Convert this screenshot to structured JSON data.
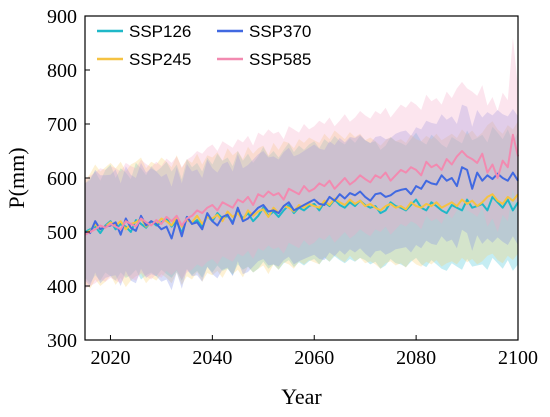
{
  "chart_data": {
    "type": "line",
    "title": "",
    "xlabel": "Year",
    "ylabel": "P(mm)",
    "xlim": [
      2015,
      2100
    ],
    "ylim": [
      300,
      900
    ],
    "xticks": [
      2020,
      2040,
      2060,
      2080,
      2100
    ],
    "yticks": [
      300,
      400,
      500,
      600,
      700,
      800,
      900
    ],
    "grid": false,
    "legend_position": "top-left",
    "x": [
      2015,
      2016,
      2017,
      2018,
      2019,
      2020,
      2021,
      2022,
      2023,
      2024,
      2025,
      2026,
      2027,
      2028,
      2029,
      2030,
      2031,
      2032,
      2033,
      2034,
      2035,
      2036,
      2037,
      2038,
      2039,
      2040,
      2041,
      2042,
      2043,
      2044,
      2045,
      2046,
      2047,
      2048,
      2049,
      2050,
      2051,
      2052,
      2053,
      2054,
      2055,
      2056,
      2057,
      2058,
      2059,
      2060,
      2061,
      2062,
      2063,
      2064,
      2065,
      2066,
      2067,
      2068,
      2069,
      2070,
      2071,
      2072,
      2073,
      2074,
      2075,
      2076,
      2077,
      2078,
      2079,
      2080,
      2081,
      2082,
      2083,
      2084,
      2085,
      2086,
      2087,
      2088,
      2089,
      2090,
      2091,
      2092,
      2093,
      2094,
      2095,
      2096,
      2097,
      2098,
      2099,
      2100
    ],
    "series": [
      {
        "name": "SSP126",
        "color": "#1FB8C8",
        "band_color": "#40C4D8",
        "values": [
          500,
          505,
          510,
          498,
          512,
          520,
          505,
          515,
          510,
          500,
          522,
          515,
          508,
          520,
          512,
          518,
          525,
          510,
          520,
          498,
          528,
          515,
          522,
          510,
          530,
          520,
          535,
          525,
          530,
          518,
          540,
          525,
          535,
          520,
          530,
          545,
          530,
          538,
          528,
          540,
          550,
          535,
          545,
          540,
          548,
          552,
          540,
          555,
          548,
          560,
          550,
          545,
          555,
          548,
          558,
          550,
          545,
          548,
          535,
          540,
          555,
          548,
          545,
          540,
          550,
          560,
          545,
          540,
          555,
          548,
          540,
          535,
          550,
          545,
          540,
          560,
          545,
          548,
          552,
          540,
          565,
          555,
          545,
          560,
          540,
          555
        ],
        "lower": [
          415,
          405,
          420,
          410,
          425,
          418,
          410,
          425,
          415,
          420,
          430,
          412,
          420,
          425,
          418,
          430,
          422,
          415,
          428,
          410,
          432,
          420,
          428,
          415,
          435,
          425,
          438,
          428,
          432,
          420,
          440,
          430,
          436,
          425,
          432,
          445,
          432,
          440,
          430,
          442,
          448,
          435,
          444,
          438,
          446,
          450,
          440,
          452,
          445,
          455,
          448,
          442,
          450,
          445,
          452,
          448,
          440,
          445,
          432,
          438,
          450,
          442,
          440,
          435,
          445,
          452,
          440,
          435,
          448,
          440,
          432,
          428,
          442,
          436,
          430,
          450,
          436,
          438,
          440,
          430,
          452,
          442,
          432,
          448,
          428,
          440
        ],
        "upper": [
          590,
          600,
          612,
          595,
          615,
          625,
          600,
          618,
          610,
          598,
          628,
          618,
          605,
          622,
          612,
          620,
          630,
          612,
          625,
          598,
          635,
          620,
          628,
          612,
          638,
          625,
          645,
          632,
          638,
          622,
          650,
          632,
          645,
          628,
          640,
          658,
          640,
          650,
          638,
          652,
          665,
          648,
          660,
          652,
          662,
          668,
          655,
          672,
          664,
          678,
          668,
          662,
          674,
          665,
          678,
          670,
          665,
          668,
          652,
          660,
          676,
          668,
          665,
          660,
          672,
          684,
          668,
          662,
          680,
          672,
          662,
          656,
          676,
          670,
          664,
          688,
          670,
          674,
          680,
          666,
          695,
          684,
          672,
          690,
          666,
          685
        ]
      },
      {
        "name": "SSP245",
        "color": "#F5C242",
        "band_color": "#F7D070",
        "values": [
          498,
          502,
          515,
          505,
          510,
          518,
          512,
          520,
          505,
          515,
          518,
          525,
          510,
          520,
          515,
          525,
          520,
          512,
          528,
          510,
          522,
          518,
          530,
          515,
          528,
          525,
          532,
          520,
          538,
          528,
          535,
          522,
          540,
          530,
          538,
          542,
          528,
          545,
          535,
          548,
          545,
          538,
          550,
          545,
          552,
          548,
          545,
          558,
          550,
          562,
          555,
          550,
          560,
          552,
          558,
          548,
          552,
          545,
          540,
          548,
          552,
          545,
          548,
          542,
          555,
          548,
          545,
          552,
          548,
          555,
          545,
          550,
          555,
          548,
          560,
          552,
          558,
          548,
          555,
          565,
          570,
          558,
          552,
          565,
          558,
          570
        ],
        "lower": [
          405,
          395,
          412,
          400,
          408,
          420,
          402,
          415,
          398,
          410,
          418,
          422,
          405,
          416,
          410,
          422,
          415,
          405,
          425,
          402,
          418,
          412,
          426,
          408,
          424,
          420,
          428,
          415,
          432,
          422,
          430,
          416,
          436,
          425,
          432,
          438,
          422,
          440,
          430,
          444,
          440,
          432,
          446,
          440,
          448,
          444,
          440,
          454,
          445,
          458,
          450,
          444,
          456,
          446,
          452,
          442,
          446,
          440,
          432,
          442,
          446,
          438,
          442,
          434,
          448,
          440,
          436,
          445,
          440,
          448,
          436,
          442,
          446,
          440,
          452,
          444,
          450,
          440,
          446,
          456,
          460,
          448,
          442,
          456,
          448,
          460
        ],
        "upper": [
          595,
          608,
          625,
          612,
          620,
          628,
          618,
          630,
          612,
          625,
          630,
          638,
          618,
          630,
          625,
          638,
          630,
          620,
          642,
          618,
          635,
          628,
          645,
          625,
          642,
          638,
          648,
          632,
          655,
          642,
          650,
          635,
          658,
          645,
          655,
          660,
          642,
          665,
          652,
          668,
          665,
          655,
          672,
          665,
          675,
          670,
          665,
          682,
          672,
          688,
          680,
          672,
          685,
          676,
          682,
          670,
          675,
          668,
          660,
          670,
          676,
          668,
          672,
          665,
          680,
          672,
          668,
          678,
          672,
          682,
          670,
          676,
          682,
          674,
          690,
          680,
          688,
          676,
          684,
          698,
          705,
          690,
          682,
          698,
          690,
          705
        ]
      },
      {
        "name": "SSP370",
        "color": "#4169E1",
        "band_color": "#7E8FE8",
        "values": [
          500,
          498,
          520,
          505,
          510,
          512,
          518,
          495,
          525,
          508,
          502,
          530,
          512,
          520,
          515,
          505,
          510,
          488,
          522,
          492,
          528,
          515,
          518,
          505,
          535,
          520,
          512,
          528,
          532,
          515,
          545,
          520,
          525,
          535,
          545,
          550,
          538,
          540,
          535,
          548,
          555,
          540,
          545,
          550,
          555,
          560,
          552,
          550,
          565,
          558,
          570,
          562,
          572,
          568,
          575,
          565,
          558,
          570,
          572,
          565,
          568,
          575,
          578,
          580,
          570,
          585,
          580,
          595,
          590,
          588,
          605,
          595,
          600,
          585,
          620,
          615,
          580,
          610,
          595,
          605,
          598,
          608,
          600,
          595,
          610,
          595
        ],
        "lower": [
          410,
          400,
          425,
          405,
          415,
          418,
          420,
          400,
          428,
          410,
          405,
          432,
          415,
          422,
          418,
          408,
          412,
          392,
          425,
          395,
          430,
          418,
          420,
          408,
          436,
          422,
          414,
          430,
          434,
          418,
          446,
          422,
          426,
          436,
          446,
          450,
          438,
          440,
          436,
          448,
          454,
          440,
          446,
          450,
          454,
          458,
          450,
          448,
          462,
          455,
          466,
          458,
          468,
          462,
          470,
          460,
          452,
          464,
          466,
          458,
          462,
          468,
          470,
          472,
          462,
          476,
          470,
          484,
          478,
          476,
          492,
          482,
          486,
          470,
          504,
          498,
          465,
          494,
          478,
          488,
          480,
          490,
          482,
          476,
          492,
          476
        ],
        "upper": [
          590,
          596,
          615,
          605,
          605,
          606,
          616,
          590,
          622,
          606,
          600,
          628,
          610,
          618,
          612,
          602,
          608,
          584,
          620,
          590,
          626,
          612,
          616,
          600,
          634,
          618,
          610,
          626,
          630,
          612,
          644,
          618,
          624,
          634,
          644,
          650,
          638,
          640,
          634,
          648,
          656,
          640,
          644,
          650,
          656,
          662,
          654,
          652,
          668,
          661,
          674,
          666,
          676,
          674,
          680,
          670,
          664,
          676,
          678,
          672,
          674,
          682,
          686,
          688,
          678,
          694,
          690,
          706,
          702,
          700,
          718,
          708,
          714,
          700,
          736,
          732,
          695,
          726,
          712,
          722,
          716,
          726,
          718,
          714,
          728,
          714
        ]
      },
      {
        "name": "SSP585",
        "color": "#F28AB0",
        "band_color": "#F6A8C8",
        "values": [
          495,
          500,
          505,
          512,
          508,
          515,
          510,
          505,
          520,
          515,
          510,
          525,
          518,
          512,
          522,
          515,
          528,
          520,
          530,
          512,
          525,
          530,
          540,
          535,
          545,
          550,
          540,
          555,
          550,
          545,
          560,
          555,
          565,
          550,
          570,
          565,
          575,
          568,
          572,
          560,
          580,
          575,
          570,
          585,
          575,
          580,
          590,
          585,
          595,
          580,
          590,
          600,
          588,
          595,
          605,
          598,
          592,
          605,
          600,
          610,
          595,
          605,
          615,
          610,
          620,
          615,
          605,
          630,
          620,
          625,
          615,
          635,
          625,
          640,
          650,
          640,
          635,
          628,
          645,
          610,
          625,
          600,
          632,
          620,
          680,
          640
        ],
        "lower": [
          395,
          400,
          405,
          412,
          408,
          415,
          410,
          405,
          420,
          415,
          410,
          425,
          418,
          412,
          422,
          415,
          428,
          420,
          430,
          412,
          425,
          430,
          440,
          435,
          445,
          450,
          440,
          455,
          450,
          445,
          460,
          455,
          465,
          450,
          470,
          465,
          475,
          468,
          472,
          460,
          480,
          475,
          470,
          485,
          475,
          480,
          490,
          485,
          495,
          480,
          490,
          500,
          488,
          495,
          505,
          498,
          492,
          505,
          500,
          510,
          495,
          505,
          515,
          510,
          520,
          515,
          505,
          530,
          520,
          525,
          515,
          535,
          525,
          540,
          550,
          540,
          535,
          528,
          545,
          510,
          525,
          500,
          532,
          520,
          580,
          540
        ],
        "upper": [
          598,
          604,
          610,
          618,
          615,
          622,
          618,
          612,
          628,
          622,
          618,
          634,
          626,
          620,
          630,
          622,
          636,
          628,
          640,
          620,
          634,
          640,
          650,
          645,
          656,
          662,
          650,
          668,
          662,
          656,
          672,
          666,
          678,
          660,
          684,
          678,
          690,
          682,
          686,
          672,
          696,
          690,
          684,
          700,
          690,
          696,
          706,
          700,
          712,
          696,
          706,
          718,
          704,
          712,
          724,
          716,
          710,
          724,
          718,
          730,
          712,
          724,
          736,
          730,
          742,
          736,
          726,
          754,
          742,
          748,
          736,
          760,
          748,
          766,
          778,
          766,
          760,
          752,
          772,
          734,
          750,
          724,
          758,
          744,
          860,
          768
        ]
      }
    ]
  }
}
